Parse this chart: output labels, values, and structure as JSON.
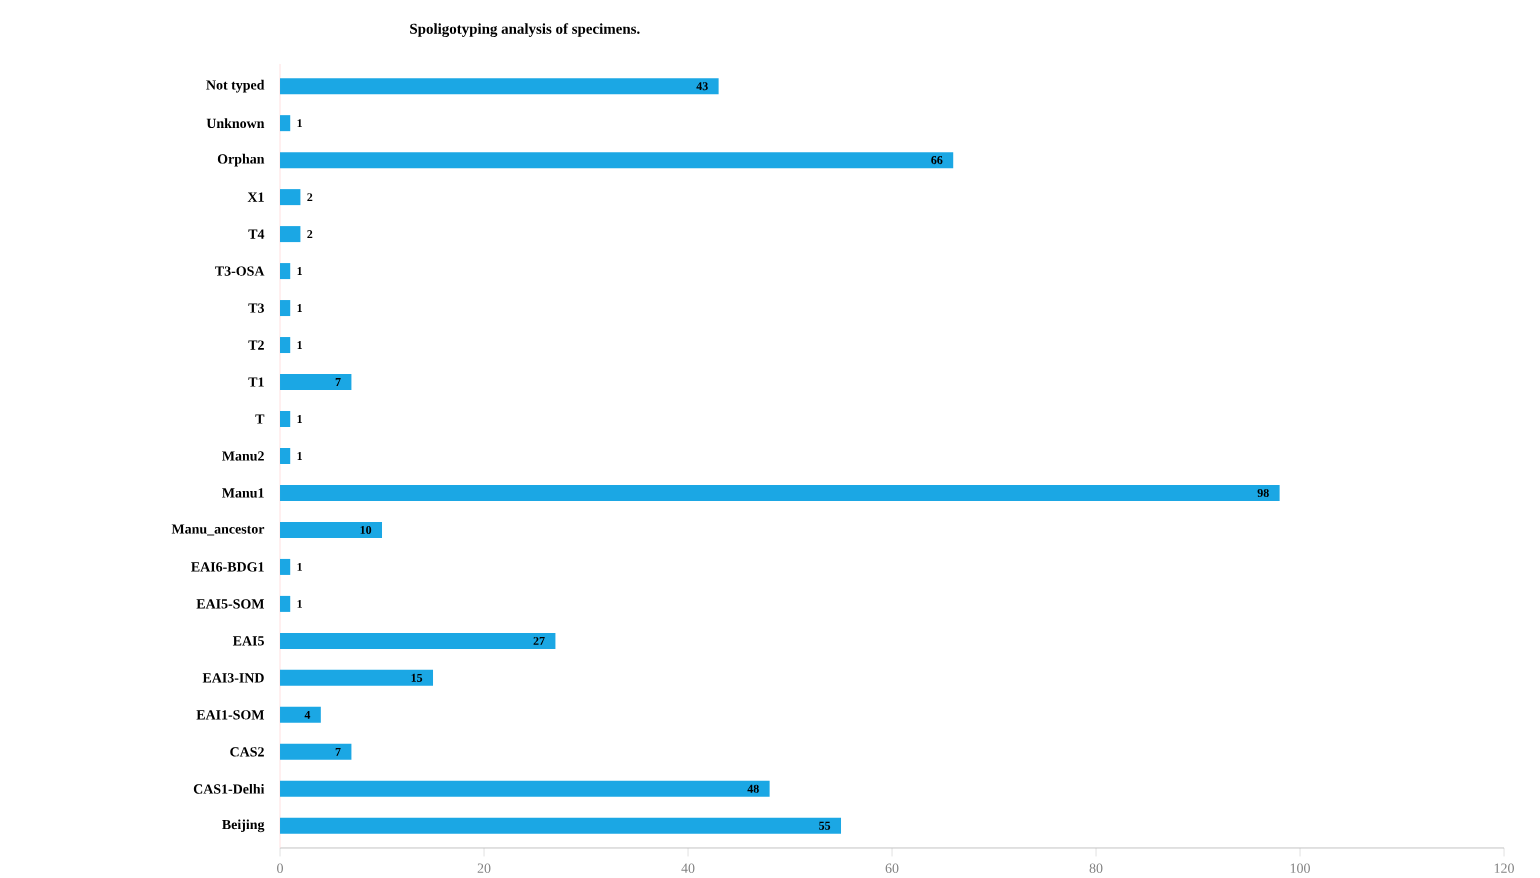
{
  "chart_data": {
    "type": "bar",
    "orientation": "horizontal",
    "title": "Spoligotyping analysis of specimens.",
    "categories": [
      "Not typed",
      "Unknown",
      "Orphan",
      "X1",
      "T4",
      "T3-OSA",
      "T3",
      "T2",
      "T1",
      "T",
      "Manu2",
      "Manu1",
      "Manu_ancestor",
      "EAI6-BDG1",
      "EAI5-SOM",
      "EAI5",
      "EAI3-IND",
      "EAI1-SOM",
      "CAS2",
      "CAS1-Delhi",
      "Beijing"
    ],
    "values": [
      43,
      1,
      66,
      2,
      2,
      1,
      1,
      1,
      7,
      1,
      1,
      98,
      10,
      1,
      1,
      27,
      15,
      4,
      7,
      48,
      55
    ],
    "color": "#1ba7e4",
    "xlim": [
      0,
      120
    ],
    "xticks": [
      0,
      20,
      40,
      60,
      80,
      100,
      120
    ],
    "data_labels": true,
    "grid": false
  }
}
